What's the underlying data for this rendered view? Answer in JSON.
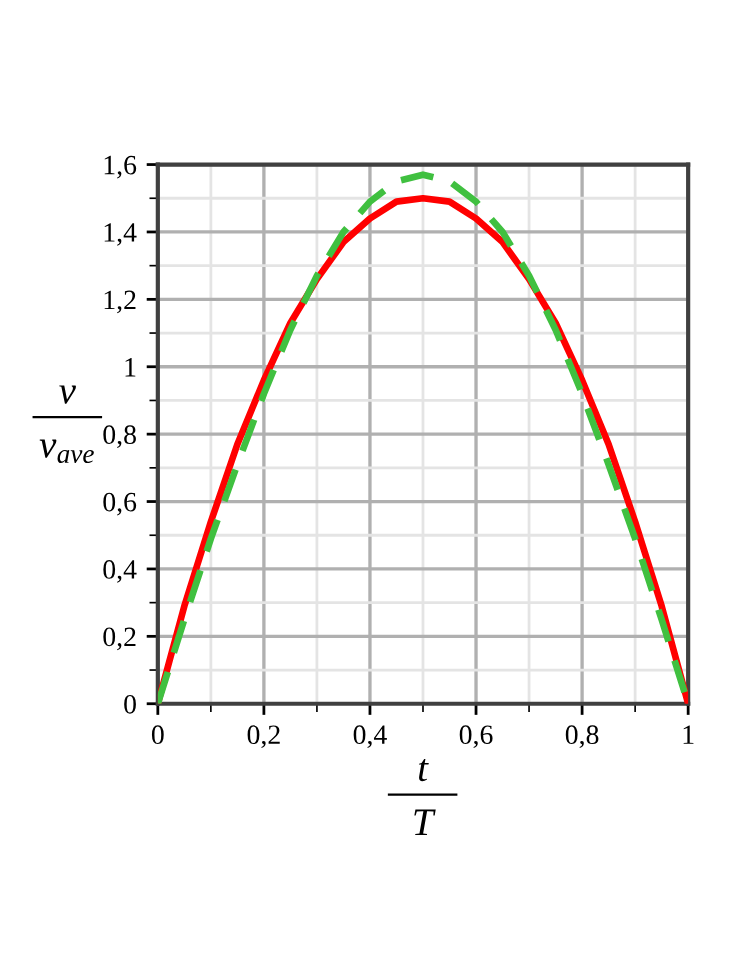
{
  "chart_data": {
    "type": "line",
    "xlabel": "t\nT",
    "ylabel": "v\nv$_{ave}$",
    "x": [
      0,
      0.05,
      0.1,
      0.15,
      0.2,
      0.25,
      0.3,
      0.35,
      0.4,
      0.45,
      0.5,
      0.55,
      0.6,
      0.65,
      0.7,
      0.75,
      0.8,
      0.85,
      0.9,
      0.95,
      1
    ],
    "series": [
      {
        "color": "#ff0000",
        "line_style": "solid",
        "values": [
          0,
          0.29,
          0.54,
          0.77,
          0.96,
          1.13,
          1.26,
          1.37,
          1.44,
          1.49,
          1.5,
          1.49,
          1.44,
          1.37,
          1.26,
          1.13,
          0.96,
          0.77,
          0.54,
          0.29,
          0
        ]
      },
      {
        "color": "#40c040",
        "line_style": "dashed",
        "values": [
          0,
          0.25,
          0.49,
          0.71,
          0.92,
          1.11,
          1.27,
          1.4,
          1.49,
          1.55,
          1.57,
          1.55,
          1.49,
          1.4,
          1.27,
          1.11,
          0.92,
          0.71,
          0.49,
          0.25,
          0
        ]
      }
    ],
    "xlim": [
      0,
      1
    ],
    "ylim": [
      0,
      1.6
    ],
    "xticks": [
      0,
      {
        "value": 0.2,
        "label": "0,2"
      },
      {
        "value": 0.4,
        "label": "0,4"
      },
      {
        "value": 0.6,
        "label": "0,6"
      },
      {
        "value": 0.8,
        "label": "0,8"
      },
      1
    ],
    "yticks": [
      0,
      {
        "value": 0.2,
        "label": "0,2"
      },
      {
        "value": 0.4,
        "label": "0,4"
      },
      {
        "value": 0.6,
        "label": "0,6"
      },
      {
        "value": 0.8,
        "label": "0,8"
      },
      1,
      {
        "value": 1.2,
        "label": "1,2"
      },
      {
        "value": 1.4,
        "label": "1,4"
      },
      {
        "value": 1.6,
        "label": "1,6"
      }
    ],
    "grid": true,
    "marker": "none"
  }
}
